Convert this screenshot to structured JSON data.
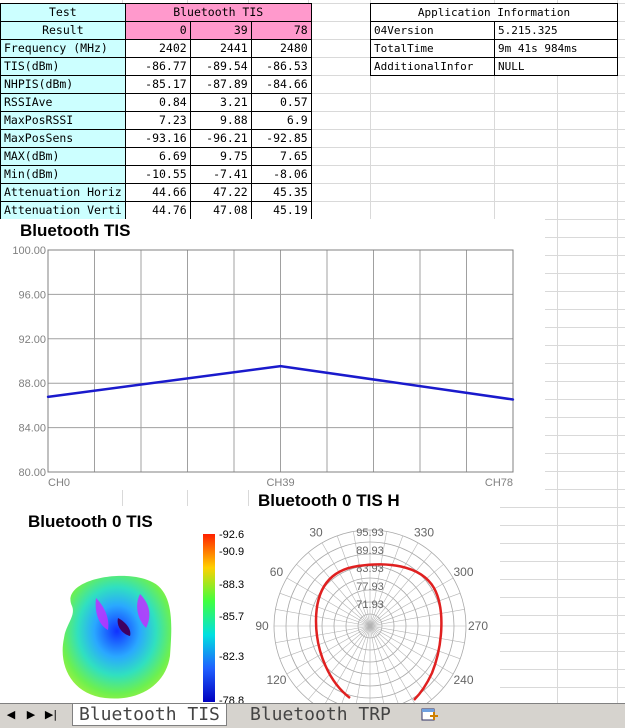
{
  "table": {
    "test_label": "Test",
    "result_label": "Result",
    "group_title": "Bluetooth TIS",
    "channels": [
      "0",
      "39",
      "78"
    ],
    "rows": [
      {
        "label": "Frequency (MHz)",
        "values": [
          "2402",
          "2441",
          "2480"
        ]
      },
      {
        "label": "TIS(dBm)",
        "values": [
          "-86.77",
          "-89.54",
          "-86.53"
        ]
      },
      {
        "label": "NHPIS(dBm)",
        "values": [
          "-85.17",
          "-87.89",
          "-84.66"
        ]
      },
      {
        "label": "RSSIAve",
        "values": [
          "0.84",
          "3.21",
          "0.57"
        ]
      },
      {
        "label": "MaxPosRSSI",
        "values": [
          "7.23",
          "9.88",
          "6.9"
        ]
      },
      {
        "label": "MaxPosSens",
        "values": [
          "-93.16",
          "-96.21",
          "-92.85"
        ]
      },
      {
        "label": "MAX(dBm)",
        "values": [
          "6.69",
          "9.75",
          "7.65"
        ]
      },
      {
        "label": "Min(dBm)",
        "values": [
          "-10.55",
          "-7.41",
          "-8.06"
        ]
      },
      {
        "label": "Attenuation Horiz",
        "values": [
          "44.66",
          "47.22",
          "45.35"
        ]
      },
      {
        "label": "Attenuation Verti",
        "values": [
          "44.76",
          "47.08",
          "45.19"
        ]
      }
    ]
  },
  "info": {
    "title": "Application Information",
    "rows": [
      {
        "key": "04Version",
        "value": "5.215.325"
      },
      {
        "key": "TotalTime",
        "value": "9m 41s 984ms"
      },
      {
        "key": "AdditionalInfor",
        "value": "NULL"
      }
    ]
  },
  "chart_data": [
    {
      "type": "line",
      "title": "Bluetooth TIS",
      "categories": [
        "CH0",
        "CH39",
        "CH78"
      ],
      "series": [
        {
          "name": "TIS",
          "values": [
            86.77,
            89.54,
            86.53
          ],
          "color": "#1a1acc"
        }
      ],
      "ylim": [
        80,
        100
      ],
      "yticks": [
        "100.00",
        "96.00",
        "92.00",
        "88.00",
        "84.00",
        "80.00"
      ],
      "ytick_values": [
        100,
        96,
        92,
        88,
        84,
        80
      ],
      "xlabel": "",
      "ylabel": ""
    },
    {
      "type": "heatmap",
      "title": "Bluetooth 0 TIS",
      "colorbar_labels": [
        "-92.6",
        "-90.9",
        "-88.3",
        "-85.7",
        "-82.3",
        "-78.8"
      ]
    },
    {
      "type": "polar",
      "title": "Bluetooth 0 TIS H",
      "radial_labels": [
        "95.93",
        "89.93",
        "83.93",
        "77.93",
        "71.93"
      ],
      "angle_labels": [
        "30",
        "330",
        "60",
        "300",
        "90",
        "270",
        "120",
        "240"
      ],
      "series_color": "#e02020"
    }
  ],
  "tabs": {
    "nav": [
      "◀",
      "▶",
      "▶|"
    ],
    "items": [
      {
        "label": "Bluetooth TIS",
        "active": true
      },
      {
        "label": "Bluetooth TRP",
        "active": false
      }
    ]
  }
}
